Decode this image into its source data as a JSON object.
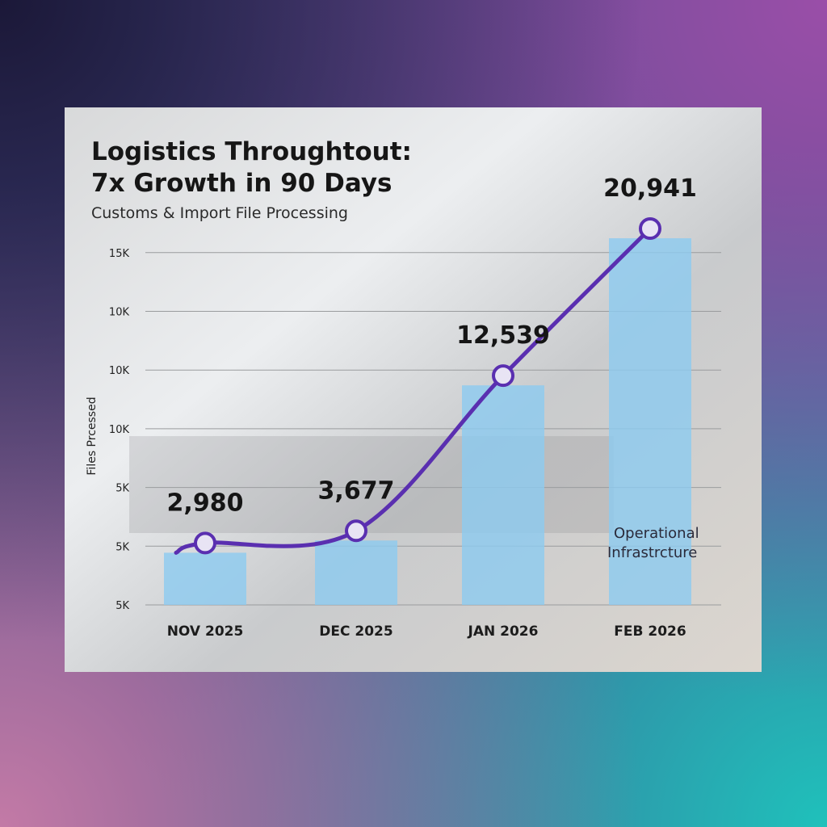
{
  "chart_data": {
    "type": "bar+line",
    "title": "Logistics Throughtout:",
    "title_line2": "7x Growth in 90 Days",
    "subtitle": "Customs & Import File Processing",
    "ylabel": "Files Prcessed",
    "xlabel": "",
    "categories": [
      "NOV 2025",
      "DEC 2025",
      "JAN 2026",
      "FEB 2026"
    ],
    "values": [
      2980,
      3677,
      12539,
      20941
    ],
    "data_labels": [
      "2,980",
      "3,677",
      "12,539",
      "20,941"
    ],
    "y_tick_labels": [
      "5K",
      "5K",
      "5K",
      "10K",
      "10K",
      "10K",
      "15K"
    ],
    "annotation_line1": "Operational",
    "annotation_line2": "Infrastrcture",
    "grid": true,
    "legend": "none",
    "colors": {
      "bar": "#8ccbf0",
      "line": "#5a2fb0",
      "marker_fill": "#e8e4f4"
    }
  }
}
